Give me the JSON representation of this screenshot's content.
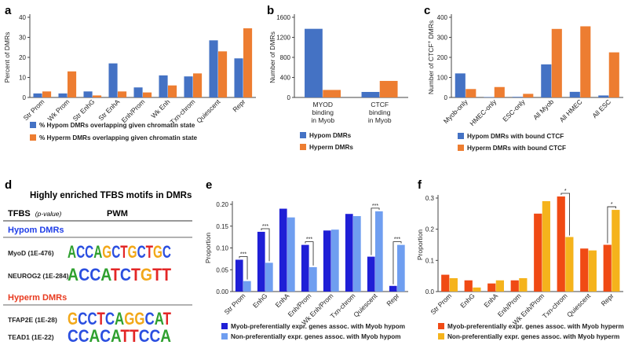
{
  "colors": {
    "blue": "#4472c4",
    "orange": "#ed7d31",
    "dark_blue": "#1f1fd6",
    "light_blue": "#6f9ef0",
    "red_orange": "#f04a14",
    "amber": "#f5b31c",
    "axis": "#444444",
    "hypom_label": "#1f3ee8",
    "hyperm_label": "#e83a1f"
  },
  "chart_data": [
    {
      "panel": "a",
      "type": "bar",
      "ylabel": "Percent of DMRs",
      "ylim": [
        0,
        40
      ],
      "yticks": [
        0,
        10,
        20,
        30,
        40
      ],
      "categories": [
        "Str Prom",
        "Wk Prom",
        "Str EnhG",
        "Str EnhA",
        "Enh/Prom",
        "Wk Enh",
        "Txn-chrom",
        "Quiescent",
        "Repr"
      ],
      "series": [
        {
          "name": "% Hypom DMRs overlapping given chromatin state",
          "color": "blue",
          "values": [
            2,
            2,
            3,
            17,
            5,
            11,
            10.5,
            28.5,
            19.5
          ]
        },
        {
          "name": "% Hyperm DMRs overlapping given chromatin state",
          "color": "orange",
          "values": [
            3,
            13,
            1,
            3,
            2.5,
            6,
            12,
            23,
            34.5
          ]
        }
      ]
    },
    {
      "panel": "b",
      "type": "bar",
      "ylabel": "Number of DMRs",
      "ylim": [
        0,
        1600
      ],
      "yticks": [
        0,
        400,
        800,
        1200,
        1600
      ],
      "categories": [
        "MYOD binding in Myob",
        "CTCF binding in Myob"
      ],
      "category_lines": [
        [
          "MYOD",
          "binding",
          "in Myob"
        ],
        [
          "CTCF",
          "binding",
          "in Myob"
        ]
      ],
      "series": [
        {
          "name": "Hypom DMRs",
          "color": "blue",
          "values": [
            1370,
            110
          ]
        },
        {
          "name": "Hyperm DMRs",
          "color": "orange",
          "values": [
            150,
            330
          ]
        }
      ]
    },
    {
      "panel": "c",
      "type": "bar",
      "ylabel": "Number of CTCF+ DMRs",
      "ylabel_main": "Number of CTCF",
      "ylabel_sup": "+",
      "ylabel_end": " DMRs",
      "ylim": [
        0,
        400
      ],
      "yticks": [
        0,
        100,
        200,
        300,
        400
      ],
      "categories": [
        "Myob-only",
        "HMEC-only",
        "ESC-only",
        "All Myob",
        "All HMEC",
        "All ESC"
      ],
      "series": [
        {
          "name": "Hypom DMRs with bound CTCF",
          "color": "blue",
          "values": [
            120,
            2,
            3,
            165,
            28,
            10
          ]
        },
        {
          "name": "Hyperm DMRs with bound CTCF",
          "color": "orange",
          "values": [
            42,
            52,
            18,
            342,
            355,
            225
          ]
        }
      ]
    },
    {
      "panel": "e",
      "type": "bar",
      "ylabel": "Proportion",
      "ylim": [
        0,
        0.2
      ],
      "yticks": [
        0.0,
        0.05,
        0.1,
        0.15,
        0.2
      ],
      "categories": [
        "Str Prom",
        "EnhG",
        "EnhA",
        "Enh/Prom",
        "Wk Enh/Prom",
        "Txn-chrom",
        "Quiescent",
        "Repr"
      ],
      "series": [
        {
          "name": "Myob-preferentially expr. genes assoc. with Myob hypom",
          "color": "dark_blue",
          "values": [
            0.073,
            0.137,
            0.19,
            0.107,
            0.14,
            0.178,
            0.08,
            0.013
          ]
        },
        {
          "name": "Non-preferentially expr. genes assoc. with Myob hypom",
          "color": "light_blue",
          "values": [
            0.024,
            0.066,
            0.17,
            0.056,
            0.142,
            0.173,
            0.184,
            0.107
          ]
        }
      ],
      "significance": [
        {
          "category": "Str Prom",
          "label": "***"
        },
        {
          "category": "EnhG",
          "label": "***"
        },
        {
          "category": "Enh/Prom",
          "label": "***"
        },
        {
          "category": "Quiescent",
          "label": "***"
        },
        {
          "category": "Repr",
          "label": "***"
        }
      ]
    },
    {
      "panel": "f",
      "type": "bar",
      "ylabel": "Proportion",
      "ylim": [
        0,
        0.3
      ],
      "yticks": [
        0.0,
        0.1,
        0.2,
        0.3
      ],
      "categories": [
        "Str Prom",
        "EnhG",
        "EnhA",
        "Enh/Prom",
        "Wk Enh/Prom",
        "Txn-chrom",
        "Quiescent",
        "Repr"
      ],
      "series": [
        {
          "name": "Myob-preferentially expr. genes assoc. with Myob hyperm",
          "color": "red_orange",
          "values": [
            0.054,
            0.036,
            0.026,
            0.036,
            0.25,
            0.305,
            0.138,
            0.15
          ]
        },
        {
          "name": "Non-preferentially expr. genes assoc. with Myob hyperm",
          "color": "amber",
          "values": [
            0.043,
            0.013,
            0.036,
            0.043,
            0.29,
            0.175,
            0.132,
            0.262
          ]
        }
      ],
      "significance": [
        {
          "category": "Txn-chrom",
          "label": "*"
        },
        {
          "category": "Repr",
          "label": "*"
        }
      ]
    }
  ],
  "panel_d": {
    "title": "Highly enriched TFBS motifs in DMRs",
    "header_tfbs": "TFBS",
    "header_pvalue": "(p-value)",
    "header_pwm": "PWM",
    "hypom_title": "Hypom DMRs",
    "hyperm_title": "Hyperm DMRs",
    "motifs": [
      {
        "name": "MyoD (1E-476)",
        "group": "hypom",
        "letters": "ACCAGCTGCTGC"
      },
      {
        "name": "NEUROG2 (1E-284)",
        "group": "hypom",
        "letters": "ACCATCTGTT"
      },
      {
        "name": "TFAP2E (1E-28)",
        "group": "hyperm",
        "letters": "GCCTCAGGCAT"
      },
      {
        "name": "TEAD1 (1E-22)",
        "group": "hyperm",
        "letters": "CCACATTCCA"
      }
    ]
  },
  "labels": {
    "a": "a",
    "b": "b",
    "c": "c",
    "d": "d",
    "e": "e",
    "f": "f"
  }
}
